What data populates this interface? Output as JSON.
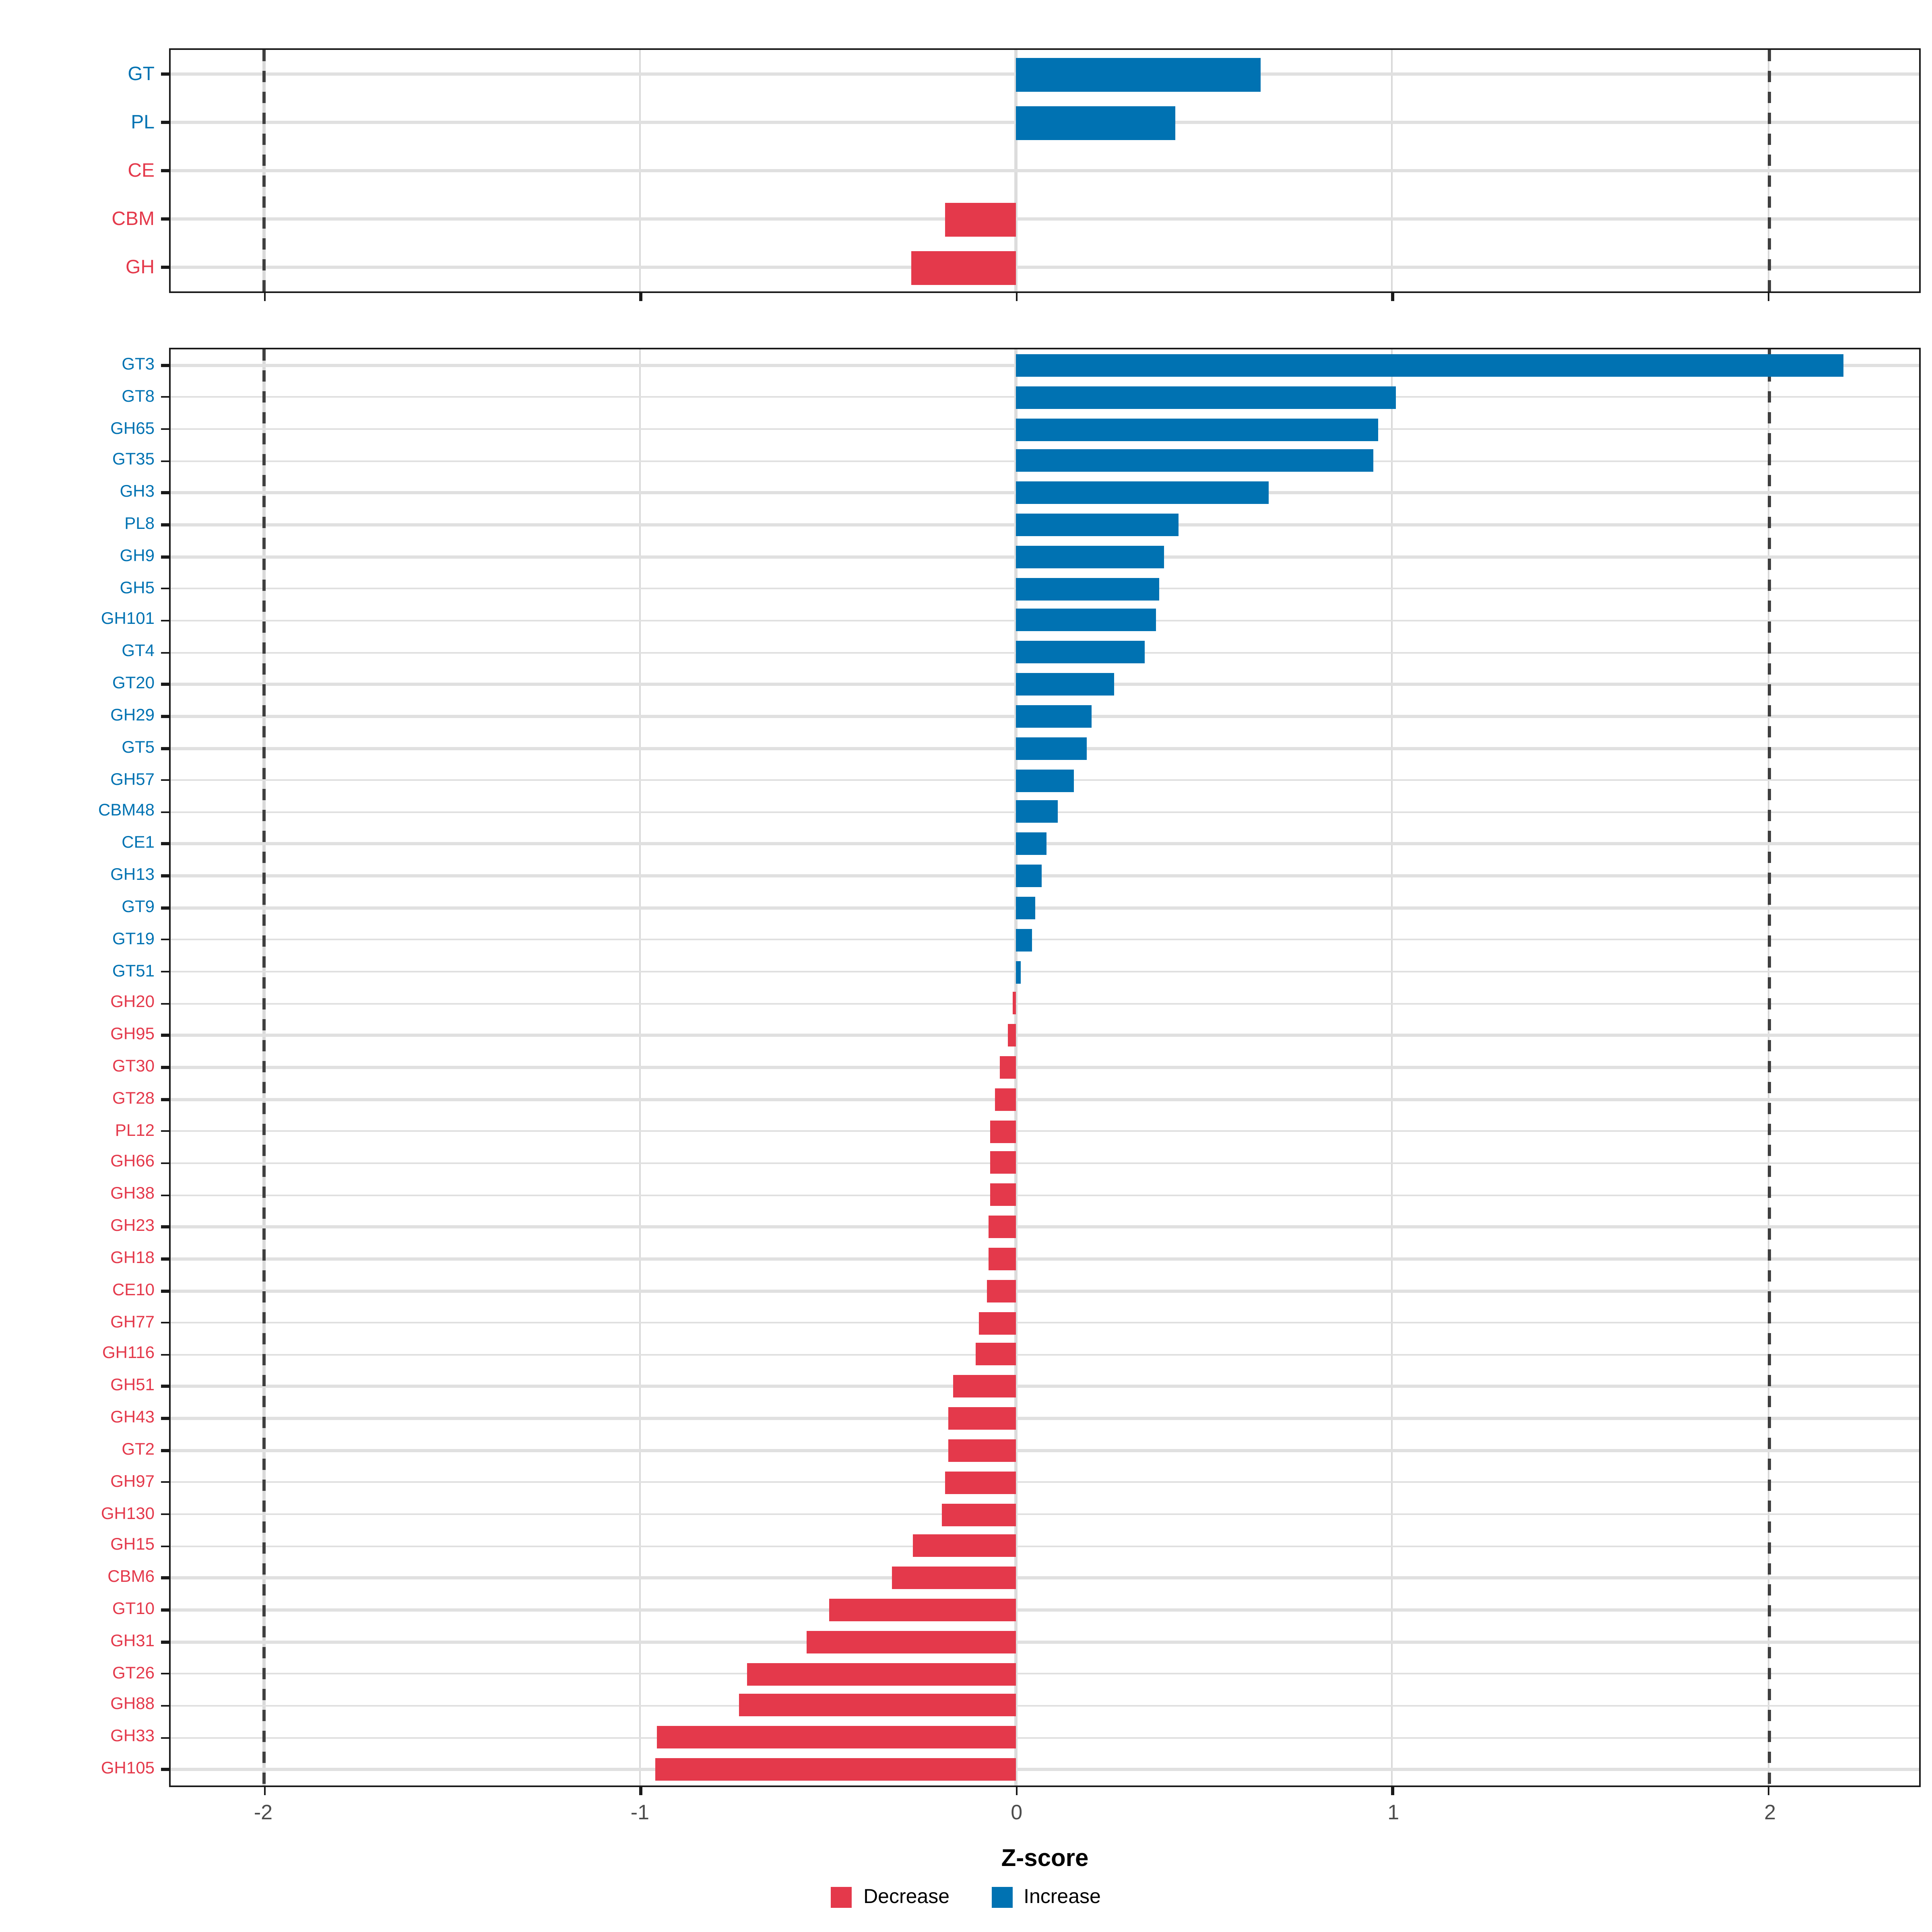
{
  "colors": {
    "increase": "#0072B2",
    "decrease": "#E4394B",
    "grid": "#E0E0E0",
    "dashed_line": "#3F3F3F",
    "tick_label": "#4D4D4D",
    "panel_border": "#1A1A1A"
  },
  "legend": {
    "items": [
      {
        "label": "Decrease",
        "color_key": "decrease"
      },
      {
        "label": "Increase",
        "color_key": "increase"
      }
    ]
  },
  "chart_data": {
    "type": "bar",
    "orientation": "horizontal",
    "title": "",
    "xlabel": "Z-score",
    "ylabel": "",
    "x_ticks": [
      -2,
      -1,
      0,
      1,
      2
    ],
    "x_tick_labels": [
      "-2",
      "-1",
      "0",
      "1",
      "2"
    ],
    "xlim": [
      -2.25,
      2.4
    ],
    "dashed_reference_lines": [
      -2,
      2
    ],
    "grid": "horizontal line per category and vertical line per tick, light gray",
    "legend_position": "bottom-center",
    "panels": [
      {
        "name": "cazyme-class-summary",
        "items": [
          {
            "label": "GT",
            "value": 0.65,
            "direction": "increase"
          },
          {
            "label": "PL",
            "value": 0.42,
            "direction": "increase"
          },
          {
            "label": "CE",
            "value": 0.0,
            "direction": "decrease"
          },
          {
            "label": "CBM",
            "value": -0.19,
            "direction": "decrease"
          },
          {
            "label": "GH",
            "value": -0.28,
            "direction": "decrease"
          }
        ]
      },
      {
        "name": "cazyme-family-detail",
        "items": [
          {
            "label": "GT3",
            "value": 2.2,
            "direction": "increase"
          },
          {
            "label": "GT8",
            "value": 1.01,
            "direction": "increase"
          },
          {
            "label": "GH65",
            "value": 0.96,
            "direction": "increase"
          },
          {
            "label": "GT35",
            "value": 0.95,
            "direction": "increase"
          },
          {
            "label": "GH3",
            "value": 0.67,
            "direction": "increase"
          },
          {
            "label": "PL8",
            "value": 0.43,
            "direction": "increase"
          },
          {
            "label": "GH9",
            "value": 0.39,
            "direction": "increase"
          },
          {
            "label": "GH5",
            "value": 0.38,
            "direction": "increase"
          },
          {
            "label": "GH101",
            "value": 0.37,
            "direction": "increase"
          },
          {
            "label": "GT4",
            "value": 0.34,
            "direction": "increase"
          },
          {
            "label": "GT20",
            "value": 0.26,
            "direction": "increase"
          },
          {
            "label": "GH29",
            "value": 0.2,
            "direction": "increase"
          },
          {
            "label": "GT5",
            "value": 0.185,
            "direction": "increase"
          },
          {
            "label": "GH57",
            "value": 0.15,
            "direction": "increase"
          },
          {
            "label": "CBM48",
            "value": 0.11,
            "direction": "increase"
          },
          {
            "label": "CE1",
            "value": 0.08,
            "direction": "increase"
          },
          {
            "label": "GH13",
            "value": 0.065,
            "direction": "increase"
          },
          {
            "label": "GT9",
            "value": 0.05,
            "direction": "increase"
          },
          {
            "label": "GT19",
            "value": 0.04,
            "direction": "increase"
          },
          {
            "label": "GT51",
            "value": 0.012,
            "direction": "increase"
          },
          {
            "label": "GH20",
            "value": -0.01,
            "direction": "decrease"
          },
          {
            "label": "GH95",
            "value": -0.025,
            "direction": "decrease"
          },
          {
            "label": "GT30",
            "value": -0.047,
            "direction": "decrease"
          },
          {
            "label": "GT28",
            "value": -0.056,
            "direction": "decrease"
          },
          {
            "label": "PL12",
            "value": -0.07,
            "direction": "decrease"
          },
          {
            "label": "GH66",
            "value": -0.07,
            "direction": "decrease"
          },
          {
            "label": "GH38",
            "value": -0.07,
            "direction": "decrease"
          },
          {
            "label": "GH23",
            "value": -0.075,
            "direction": "decrease"
          },
          {
            "label": "GH18",
            "value": -0.075,
            "direction": "decrease"
          },
          {
            "label": "CE10",
            "value": -0.08,
            "direction": "decrease"
          },
          {
            "label": "GH77",
            "value": -0.1,
            "direction": "decrease"
          },
          {
            "label": "GH116",
            "value": -0.11,
            "direction": "decrease"
          },
          {
            "label": "GH51",
            "value": -0.17,
            "direction": "decrease"
          },
          {
            "label": "GH43",
            "value": -0.18,
            "direction": "decrease"
          },
          {
            "label": "GT2",
            "value": -0.18,
            "direction": "decrease"
          },
          {
            "label": "GH97",
            "value": -0.19,
            "direction": "decrease"
          },
          {
            "label": "GH130",
            "value": -0.2,
            "direction": "decrease"
          },
          {
            "label": "GH15",
            "value": -0.275,
            "direction": "decrease"
          },
          {
            "label": "CBM6",
            "value": -0.33,
            "direction": "decrease"
          },
          {
            "label": "GT10",
            "value": -0.5,
            "direction": "decrease"
          },
          {
            "label": "GH31",
            "value": -0.56,
            "direction": "decrease"
          },
          {
            "label": "GT26",
            "value": -0.715,
            "direction": "decrease"
          },
          {
            "label": "GH88",
            "value": -0.74,
            "direction": "decrease"
          },
          {
            "label": "GH33",
            "value": -0.955,
            "direction": "decrease"
          },
          {
            "label": "GH105",
            "value": -0.96,
            "direction": "decrease"
          }
        ]
      }
    ]
  }
}
